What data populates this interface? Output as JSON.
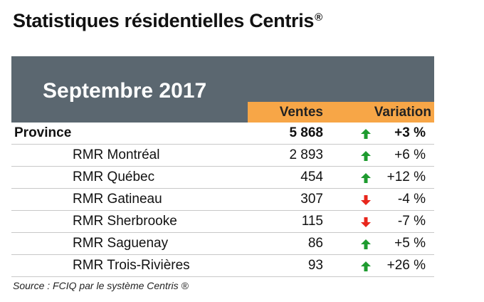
{
  "title": {
    "text": "Statistiques résidentielles Centris",
    "mark": "®"
  },
  "table": {
    "period": "Septembre 2017",
    "columns": {
      "sales": "Ventes",
      "change": "Variation"
    },
    "rows": [
      {
        "label": "Province",
        "sales": "5 868",
        "trend": "up-arrow-icon",
        "change": "+3 %"
      },
      {
        "label": "RMR Montréal",
        "sales": "2 893",
        "trend": "up-arrow-icon",
        "change": "+6 %"
      },
      {
        "label": "RMR Québec",
        "sales": "454",
        "trend": "up-arrow-icon",
        "change": "+12 %"
      },
      {
        "label": "RMR Gatineau",
        "sales": "307",
        "trend": "down-arrow-icon",
        "change": "-4 %"
      },
      {
        "label": "RMR Sherbrooke",
        "sales": "115",
        "trend": "down-arrow-icon",
        "change": "-7 %"
      },
      {
        "label": "RMR Saguenay",
        "sales": "86",
        "trend": "up-arrow-icon",
        "change": "+5 %"
      },
      {
        "label": "RMR Trois-Rivières",
        "sales": "93",
        "trend": "up-arrow-icon",
        "change": "+26 %"
      }
    ]
  },
  "colors": {
    "header_band": "#5b6770",
    "column_band": "#f7a647",
    "up": "#1e9b2f",
    "down": "#e8261c"
  },
  "source": "Source : FCIQ par le système Centris ®"
}
